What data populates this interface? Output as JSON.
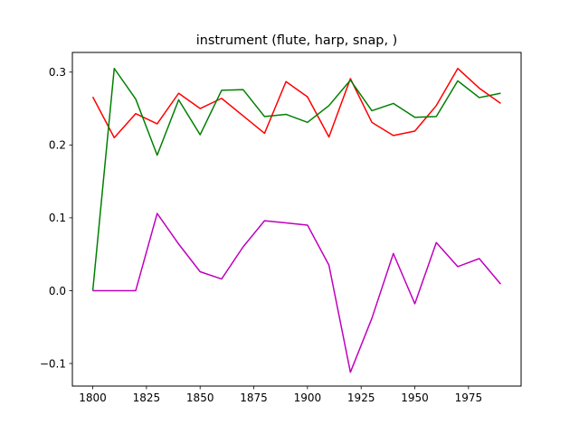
{
  "chart_data": {
    "type": "line",
    "title": "instrument (flute, harp, snap, )",
    "xlabel": "",
    "ylabel": "",
    "xlim": [
      1790.5,
      1999.5
    ],
    "ylim": [
      -0.131,
      0.327
    ],
    "xticks": [
      1800,
      1825,
      1850,
      1875,
      1900,
      1925,
      1950,
      1975
    ],
    "yticks": [
      -0.1,
      0.0,
      0.1,
      0.2,
      0.3
    ],
    "ytick_labels": [
      "−0.1",
      "0.0",
      "0.1",
      "0.2",
      "0.3"
    ],
    "grid": false,
    "legend": "none",
    "x": [
      1800,
      1810,
      1820,
      1830,
      1840,
      1850,
      1860,
      1870,
      1880,
      1890,
      1900,
      1910,
      1920,
      1930,
      1940,
      1950,
      1960,
      1970,
      1980,
      1990
    ],
    "series": [
      {
        "color": "#ff0000",
        "values": [
          0.266,
          0.21,
          0.243,
          0.229,
          0.271,
          0.25,
          0.264,
          0.24,
          0.216,
          0.287,
          0.266,
          0.211,
          0.291,
          0.231,
          0.213,
          0.219,
          0.254,
          0.305,
          0.278,
          0.257
        ]
      },
      {
        "color": "#008000",
        "values": [
          0.0,
          0.305,
          0.263,
          0.186,
          0.262,
          0.214,
          0.275,
          0.276,
          0.239,
          0.242,
          0.231,
          0.254,
          0.289,
          0.247,
          0.257,
          0.238,
          0.239,
          0.288,
          0.265,
          0.271
        ]
      },
      {
        "color": "#bf00bf",
        "values": [
          0.0,
          0.0,
          0.0,
          0.106,
          0.064,
          0.026,
          0.016,
          0.06,
          0.096,
          0.093,
          0.09,
          0.035,
          -0.112,
          -0.038,
          0.051,
          -0.018,
          0.066,
          0.033,
          0.044,
          0.009
        ]
      }
    ]
  }
}
